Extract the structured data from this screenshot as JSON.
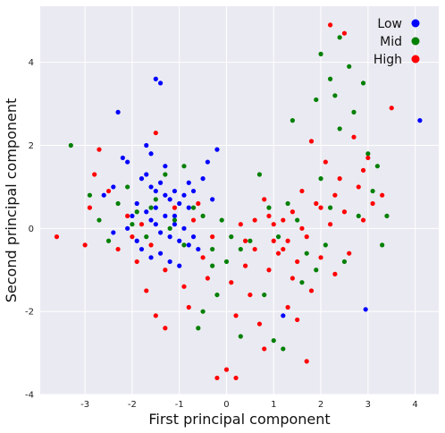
{
  "chart_data": {
    "type": "scatter",
    "xlabel": "First principal component",
    "ylabel": "Second principal component",
    "xlim": [
      -3.95,
      4.5
    ],
    "ylim": [
      -4.0,
      5.35
    ],
    "x_ticks": [
      -3,
      -2,
      -1,
      0,
      1,
      2,
      3,
      4
    ],
    "y_ticks": [
      -4,
      -2,
      0,
      2,
      4
    ],
    "grid": true,
    "legend_position": "top-right",
    "series": [
      {
        "name": "Low",
        "color": "#0000ff",
        "points": [
          [
            -2.3,
            2.8
          ],
          [
            -1.5,
            3.6
          ],
          [
            -1.4,
            3.5
          ],
          [
            -1.7,
            2.0
          ],
          [
            -1.6,
            1.8
          ],
          [
            -1.3,
            1.5
          ],
          [
            -2.2,
            1.7
          ],
          [
            -2.1,
            1.6
          ],
          [
            -1.8,
            1.2
          ],
          [
            -1.6,
            1.0
          ],
          [
            -1.5,
            0.9
          ],
          [
            -1.4,
            1.1
          ],
          [
            -1.3,
            0.8
          ],
          [
            -1.2,
            0.7
          ],
          [
            -1.1,
            0.9
          ],
          [
            -1.0,
            0.6
          ],
          [
            -0.9,
            0.8
          ],
          [
            -0.8,
            0.5
          ],
          [
            -1.7,
            0.4
          ],
          [
            -1.6,
            0.2
          ],
          [
            -1.5,
            0.1
          ],
          [
            -1.4,
            -0.1
          ],
          [
            -1.3,
            0.3
          ],
          [
            -1.2,
            -0.2
          ],
          [
            -1.1,
            0.1
          ],
          [
            -1.0,
            -0.3
          ],
          [
            -0.9,
            0.0
          ],
          [
            -0.8,
            -0.4
          ],
          [
            -0.7,
            -0.2
          ],
          [
            -1.9,
            0.6
          ],
          [
            -2.0,
            0.3
          ],
          [
            -1.8,
            -0.5
          ],
          [
            -1.6,
            -0.7
          ],
          [
            -1.4,
            -0.6
          ],
          [
            -1.2,
            -0.8
          ],
          [
            -1.0,
            -0.9
          ],
          [
            -2.4,
            1.0
          ],
          [
            -2.6,
            0.8
          ],
          [
            -0.5,
            1.2
          ],
          [
            -0.3,
            0.7
          ],
          [
            -0.4,
            1.6
          ],
          [
            -0.6,
            -0.5
          ],
          [
            -0.2,
            1.9
          ],
          [
            -0.8,
            1.1
          ],
          [
            -1.7,
            1.3
          ],
          [
            -2.1,
            0.0
          ],
          [
            -1.9,
            -0.3
          ],
          [
            -1.5,
            0.5
          ],
          [
            4.1,
            2.6
          ],
          [
            2.95,
            -1.95
          ],
          [
            1.2,
            -2.1
          ],
          [
            -2.4,
            -0.1
          ],
          [
            -1.1,
            0.3
          ],
          [
            -0.7,
            0.9
          ]
        ]
      },
      {
        "name": "Mid",
        "color": "#008000",
        "points": [
          [
            -3.3,
            2.0
          ],
          [
            -2.9,
            0.8
          ],
          [
            -2.7,
            0.2
          ],
          [
            -2.5,
            -0.3
          ],
          [
            -2.3,
            0.6
          ],
          [
            -2.1,
            1.0
          ],
          [
            -1.9,
            0.4
          ],
          [
            -1.7,
            -0.2
          ],
          [
            -1.5,
            0.7
          ],
          [
            -1.3,
            1.3
          ],
          [
            -1.1,
            0.2
          ],
          [
            -0.9,
            -0.4
          ],
          [
            -0.7,
            0.5
          ],
          [
            -0.5,
            0.3
          ],
          [
            -0.3,
            -0.5
          ],
          [
            -0.1,
            0.2
          ],
          [
            -0.3,
            -0.9
          ],
          [
            -0.2,
            -1.6
          ],
          [
            0.1,
            -0.2
          ],
          [
            0.3,
            -0.5
          ],
          [
            0.5,
            -0.3
          ],
          [
            0.7,
            1.3
          ],
          [
            0.9,
            0.5
          ],
          [
            1.1,
            -0.2
          ],
          [
            1.3,
            0.6
          ],
          [
            1.5,
            0.2
          ],
          [
            1.7,
            -0.6
          ],
          [
            1.9,
            -1.0
          ],
          [
            2.1,
            -0.4
          ],
          [
            1.4,
            2.6
          ],
          [
            1.9,
            3.1
          ],
          [
            2.0,
            4.2
          ],
          [
            2.2,
            3.6
          ],
          [
            2.3,
            3.2
          ],
          [
            2.4,
            2.4
          ],
          [
            2.6,
            3.9
          ],
          [
            2.7,
            2.8
          ],
          [
            2.9,
            3.5
          ],
          [
            3.0,
            1.8
          ],
          [
            3.1,
            0.9
          ],
          [
            3.2,
            1.5
          ],
          [
            3.3,
            -0.4
          ],
          [
            2.5,
            -0.8
          ],
          [
            2.8,
            0.3
          ],
          [
            3.4,
            0.3
          ],
          [
            1.0,
            -2.7
          ],
          [
            1.2,
            -2.9
          ],
          [
            0.3,
            -2.6
          ],
          [
            -0.5,
            -2.0
          ],
          [
            -0.6,
            -2.4
          ],
          [
            -2.0,
            0.1
          ],
          [
            -1.6,
            0.5
          ],
          [
            -1.2,
            0.0
          ],
          [
            2.2,
            0.5
          ],
          [
            0.8,
            -1.6
          ],
          [
            1.6,
            -1.3
          ],
          [
            -0.9,
            1.5
          ],
          [
            0.0,
            -0.8
          ],
          [
            2.4,
            4.6
          ],
          [
            2.0,
            1.2
          ]
        ]
      },
      {
        "name": "High",
        "color": "#ff0000",
        "points": [
          [
            -3.6,
            -0.2
          ],
          [
            -3.0,
            -0.4
          ],
          [
            -2.9,
            0.5
          ],
          [
            -2.8,
            1.3
          ],
          [
            -2.7,
            1.9
          ],
          [
            -2.5,
            0.9
          ],
          [
            -2.3,
            -0.5
          ],
          [
            -2.1,
            0.3
          ],
          [
            -1.9,
            -0.8
          ],
          [
            -1.7,
            -1.5
          ],
          [
            -1.5,
            2.3
          ],
          [
            -1.3,
            -1.0
          ],
          [
            -1.5,
            -2.1
          ],
          [
            -1.3,
            -2.4
          ],
          [
            -1.1,
            0.5
          ],
          [
            -0.9,
            -1.4
          ],
          [
            -0.8,
            -1.9
          ],
          [
            -0.7,
            0.2
          ],
          [
            -0.5,
            -0.7
          ],
          [
            -0.4,
            -1.2
          ],
          [
            -0.3,
            -0.2
          ],
          [
            -0.2,
            -3.6
          ],
          [
            0.0,
            -3.4
          ],
          [
            0.2,
            -3.6
          ],
          [
            0.1,
            -1.3
          ],
          [
            0.2,
            -2.1
          ],
          [
            0.4,
            -0.9
          ],
          [
            0.5,
            -1.6
          ],
          [
            0.6,
            -0.5
          ],
          [
            0.7,
            -2.3
          ],
          [
            0.8,
            0.7
          ],
          [
            0.9,
            -1.0
          ],
          [
            1.0,
            -0.3
          ],
          [
            1.1,
            -0.6
          ],
          [
            1.2,
            -0.5
          ],
          [
            1.3,
            -1.9
          ],
          [
            1.4,
            0.4
          ],
          [
            1.5,
            -0.8
          ],
          [
            1.6,
            0.9
          ],
          [
            1.7,
            -0.2
          ],
          [
            1.8,
            -1.5
          ],
          [
            1.9,
            0.6
          ],
          [
            2.0,
            -0.7
          ],
          [
            2.1,
            1.6
          ],
          [
            2.2,
            0.1
          ],
          [
            2.3,
            -1.1
          ],
          [
            2.4,
            1.2
          ],
          [
            2.5,
            0.4
          ],
          [
            2.6,
            -0.6
          ],
          [
            2.7,
            2.2
          ],
          [
            2.8,
            1.0
          ],
          [
            2.9,
            0.2
          ],
          [
            3.0,
            1.7
          ],
          [
            3.1,
            0.6
          ],
          [
            2.2,
            4.9
          ],
          [
            2.5,
            4.7
          ],
          [
            3.5,
            2.9
          ],
          [
            1.7,
            -3.2
          ],
          [
            0.8,
            -2.9
          ],
          [
            1.5,
            -2.2
          ],
          [
            1.0,
            0.1
          ],
          [
            1.2,
            0.2
          ],
          [
            1.3,
            -0.3
          ],
          [
            0.9,
            0.3
          ],
          [
            1.6,
            0.0
          ],
          [
            0.6,
            0.2
          ],
          [
            1.8,
            2.1
          ],
          [
            2.0,
            0.5
          ],
          [
            -2.0,
            -0.2
          ],
          [
            -1.6,
            -0.4
          ],
          [
            -0.6,
            0.6
          ],
          [
            0.3,
            0.1
          ],
          [
            2.9,
            1.4
          ],
          [
            3.3,
            0.8
          ],
          [
            -1.8,
            0.1
          ],
          [
            2.3,
            0.8
          ],
          [
            1.4,
            -1.2
          ],
          [
            0.4,
            -0.3
          ]
        ]
      }
    ]
  }
}
